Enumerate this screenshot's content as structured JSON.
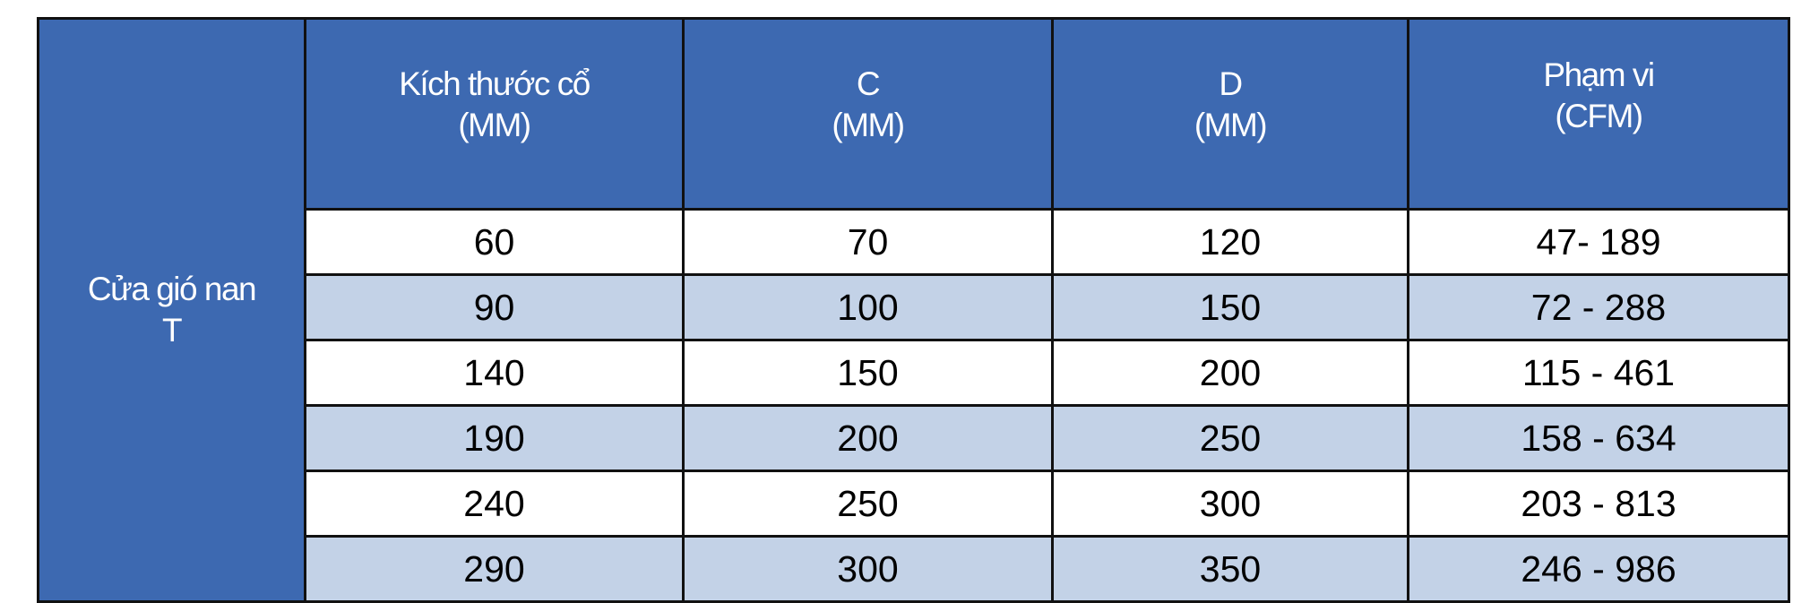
{
  "table": {
    "row_label": [
      "Cửa gió nan",
      "T"
    ],
    "headers": [
      [
        "Kích thước cổ",
        "(MM)"
      ],
      [
        "C",
        "(MM)"
      ],
      [
        "D",
        "(MM)"
      ],
      [
        "Phạm vi",
        "(CFM)"
      ]
    ],
    "rows": [
      [
        "60",
        "70",
        "120",
        "47- 189"
      ],
      [
        "90",
        "100",
        "150",
        "72 - 288"
      ],
      [
        "140",
        "150",
        "200",
        "115 - 461"
      ],
      [
        "190",
        "200",
        "250",
        "158 - 634"
      ],
      [
        "240",
        "250",
        "300",
        "203 - 813"
      ],
      [
        "290",
        "300",
        "350",
        "246 - 986"
      ]
    ],
    "colors": {
      "header": "#3d69b1",
      "stripe": "#c3d2e7",
      "row": "#ffffff"
    }
  }
}
